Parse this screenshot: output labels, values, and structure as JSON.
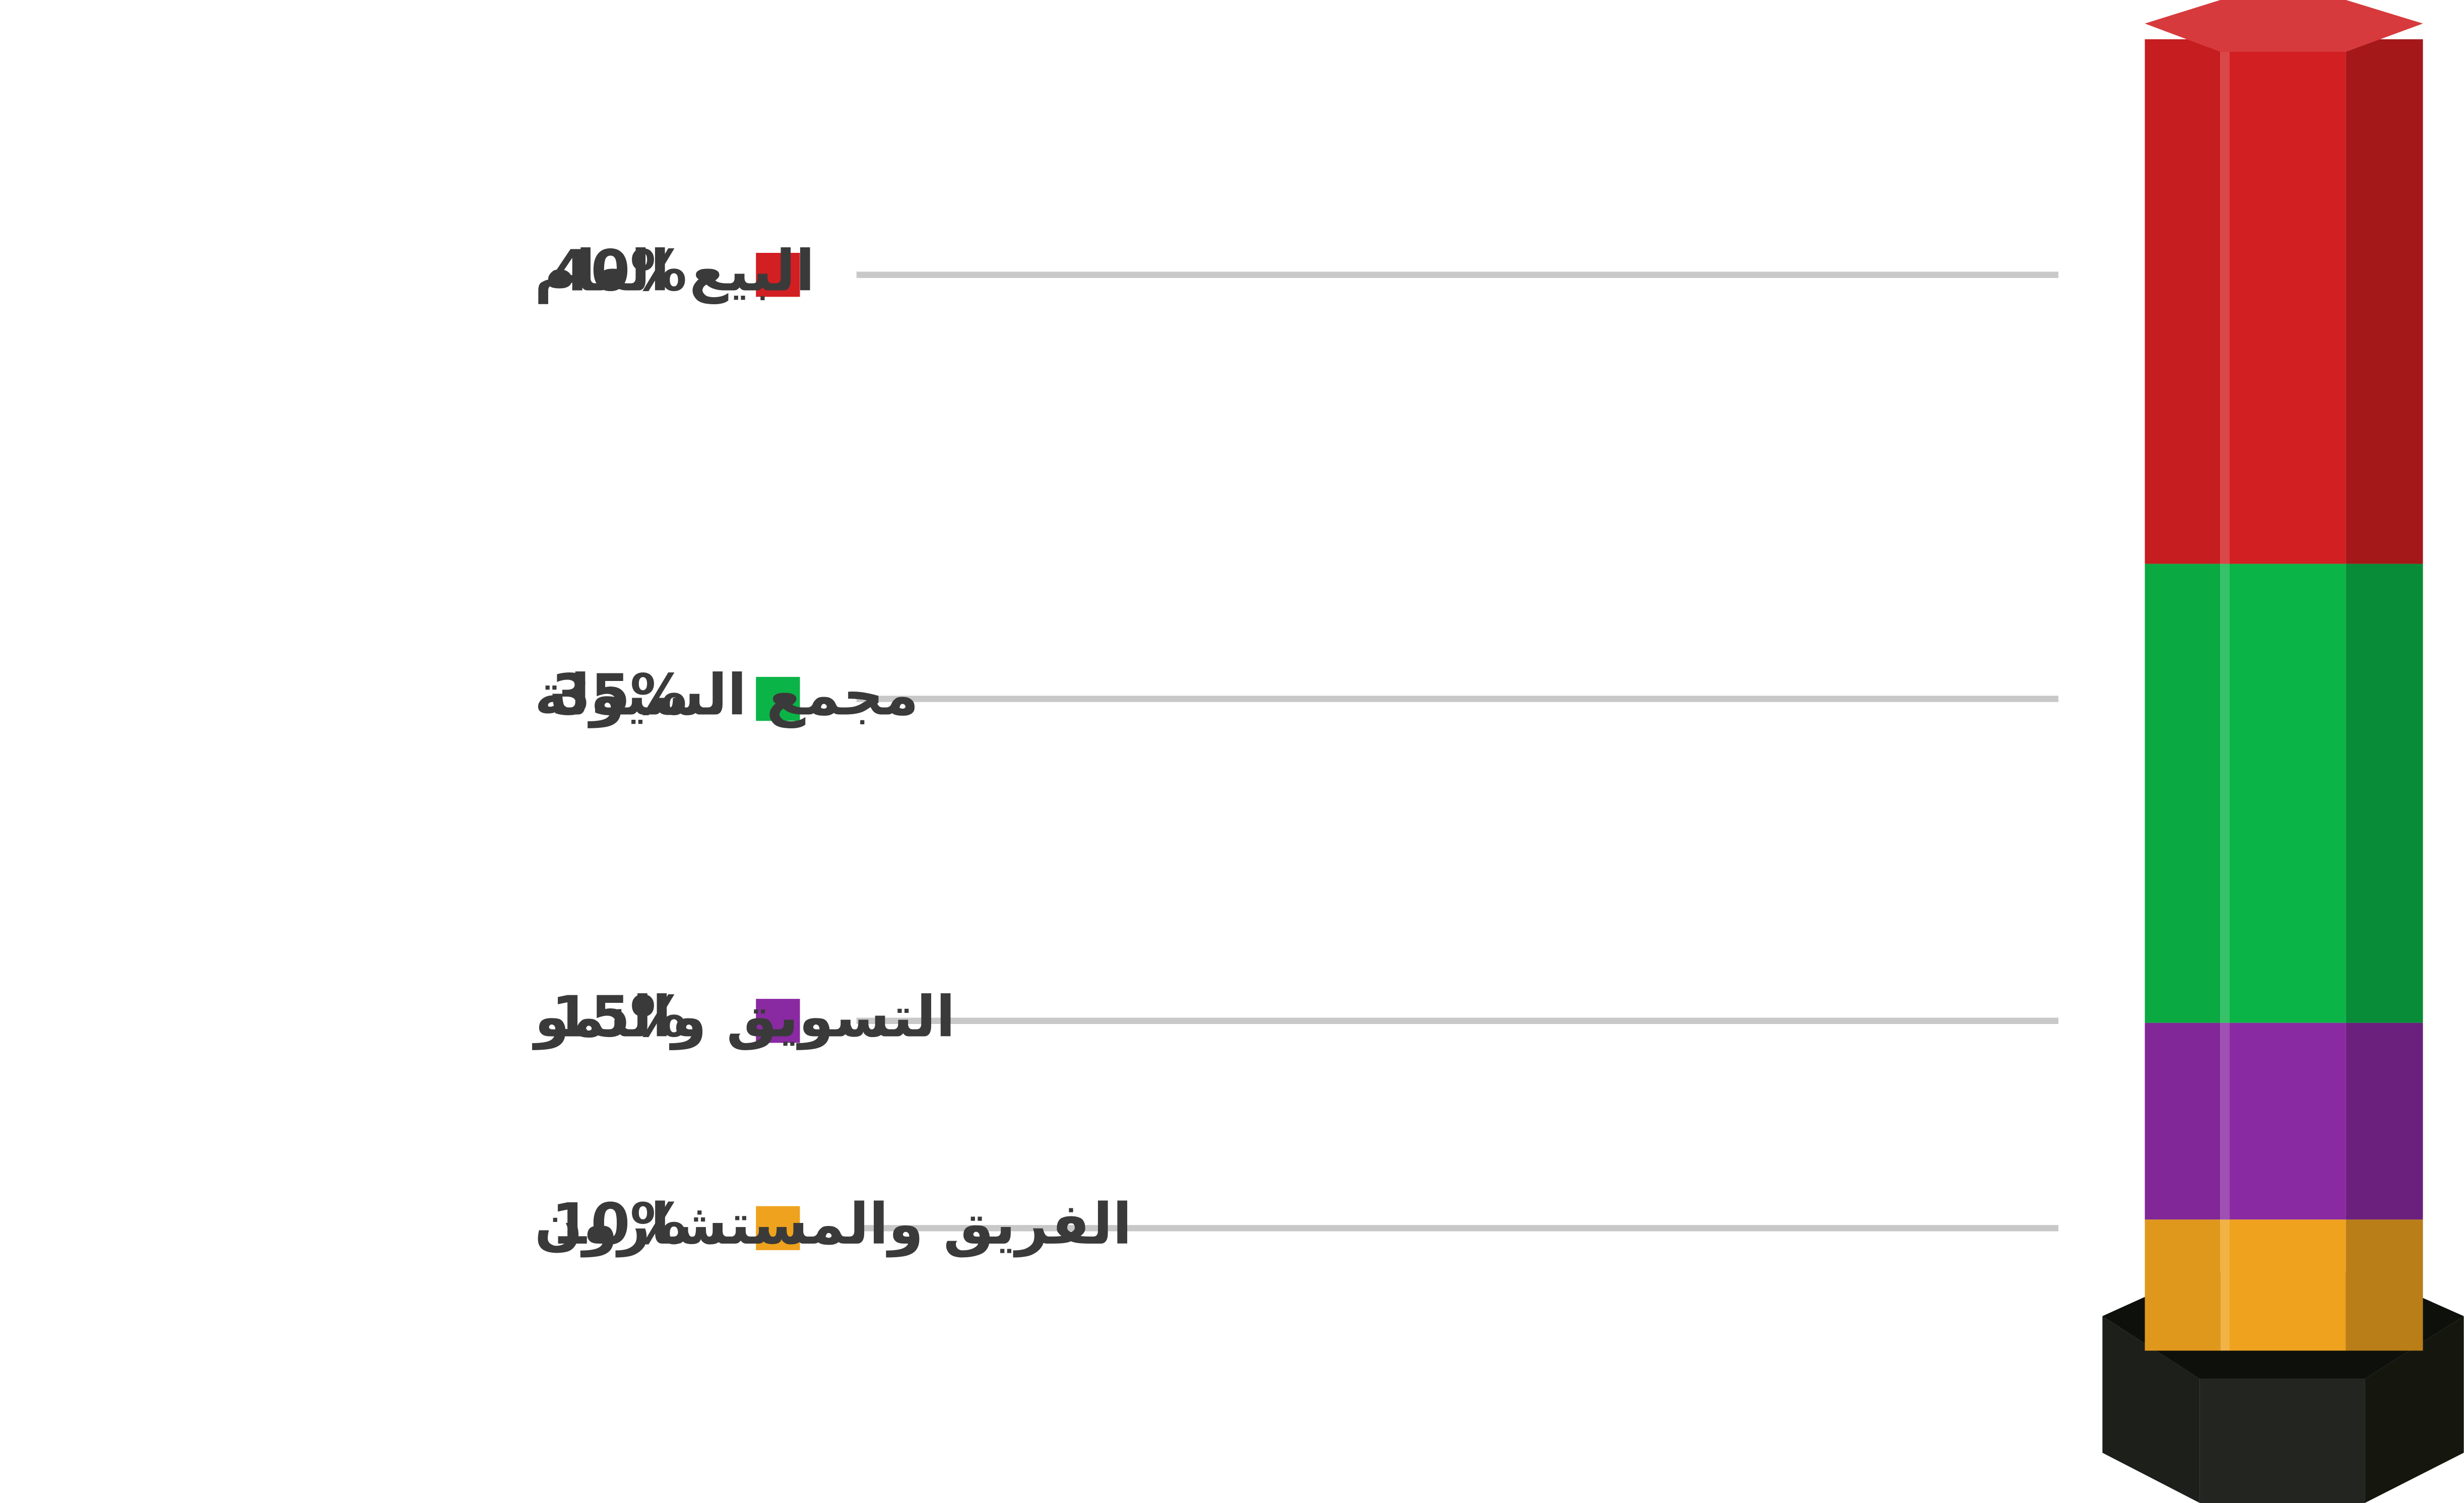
{
  "chart_data": {
    "type": "stacked-column",
    "categories": [
      "البيع العام",
      "مجمع السيولة",
      "التسويق والنمو",
      "الفريق والمستشارون"
    ],
    "values": [
      40,
      35,
      15,
      10
    ],
    "value_labels": [
      "40%",
      "35%",
      "15%",
      "10%"
    ],
    "colors": [
      "#d21f22",
      "#0bb447",
      "#8a2aa2",
      "#eea21e"
    ]
  }
}
